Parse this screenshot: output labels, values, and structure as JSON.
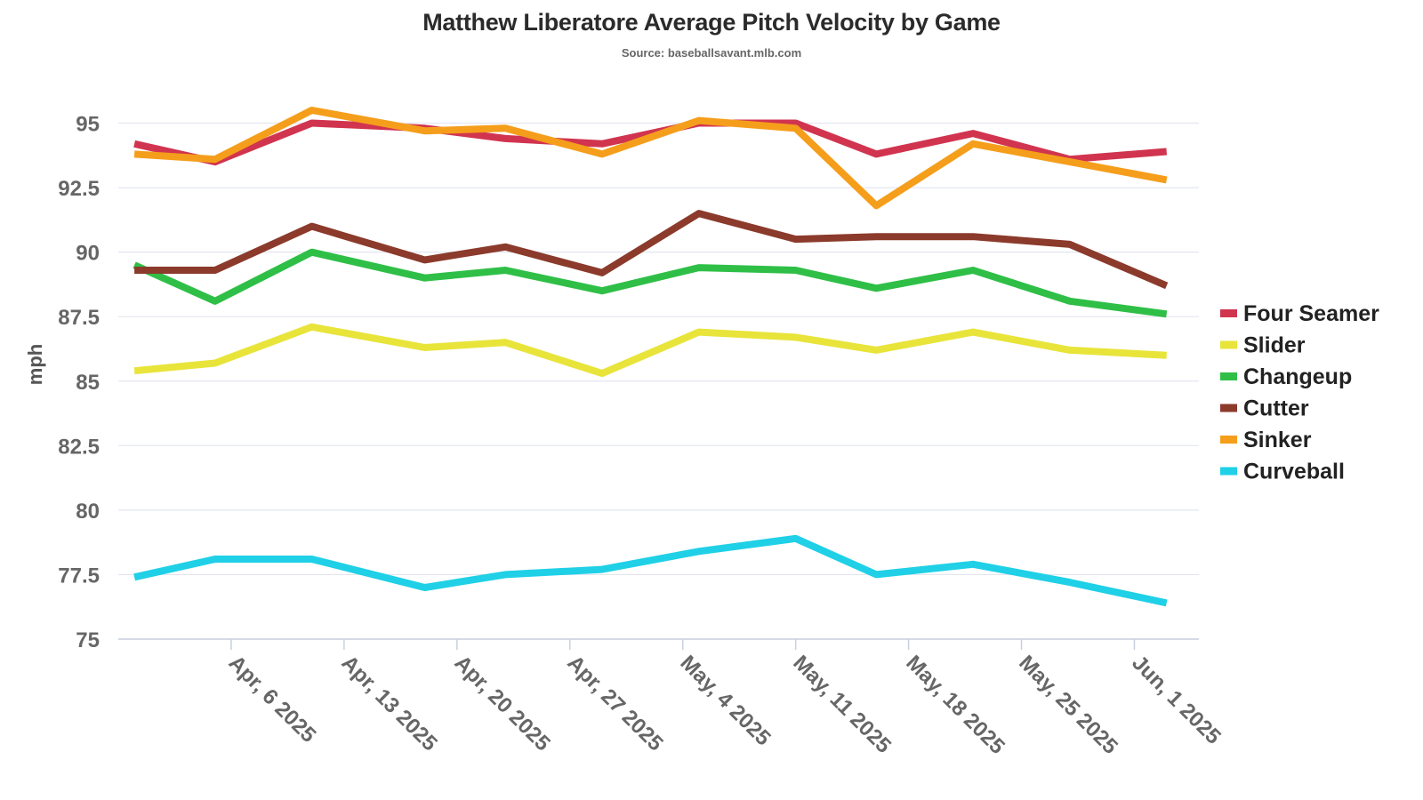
{
  "chart_data": {
    "type": "line",
    "title": "Matthew Liberatore Average Pitch Velocity by Game",
    "subtitle": "Source: baseballsavant.mlb.com",
    "xlabel": "",
    "ylabel": "mph",
    "x_dates": [
      "2025-03-31",
      "2025-04-05",
      "2025-04-11",
      "2025-04-18",
      "2025-04-23",
      "2025-04-29",
      "2025-05-05",
      "2025-05-11",
      "2025-05-16",
      "2025-05-22",
      "2025-05-28",
      "2025-06-03"
    ],
    "x_ticks": [
      "2025-04-06",
      "2025-04-13",
      "2025-04-20",
      "2025-04-27",
      "2025-05-04",
      "2025-05-11",
      "2025-05-18",
      "2025-05-25",
      "2025-06-01"
    ],
    "x_tick_labels": [
      "Apr, 6 2025",
      "Apr, 13 2025",
      "Apr, 20 2025",
      "Apr, 27 2025",
      "May, 4 2025",
      "May, 11 2025",
      "May, 18 2025",
      "May, 25 2025",
      "Jun, 1 2025"
    ],
    "xlim": [
      "2025-03-30",
      "2025-06-05"
    ],
    "ylim": [
      75,
      96.5
    ],
    "y_ticks": [
      75,
      77.5,
      80,
      82.5,
      85,
      87.5,
      90,
      92.5,
      95
    ],
    "y_tick_labels": [
      "75",
      "77.5",
      "80",
      "82.5",
      "85",
      "87.5",
      "90",
      "92.5",
      "95"
    ],
    "grid": "horizontal",
    "legend_position": "right",
    "series": [
      {
        "name": "Four Seamer",
        "color": "#d1344f",
        "values": [
          94.2,
          93.5,
          95.0,
          94.8,
          94.4,
          94.2,
          95.0,
          95.0,
          93.8,
          94.6,
          93.6,
          93.9
        ]
      },
      {
        "name": "Slider",
        "color": "#e8e43a",
        "values": [
          85.4,
          85.7,
          87.1,
          86.3,
          86.5,
          85.3,
          86.9,
          86.7,
          86.2,
          86.9,
          86.2,
          86.0
        ]
      },
      {
        "name": "Changeup",
        "color": "#2fbf47",
        "values": [
          89.5,
          88.1,
          90.0,
          89.0,
          89.3,
          88.5,
          89.4,
          89.3,
          88.6,
          89.3,
          88.1,
          87.6
        ]
      },
      {
        "name": "Cutter",
        "color": "#8b3a2b",
        "values": [
          89.3,
          89.3,
          91.0,
          89.7,
          90.2,
          89.2,
          91.5,
          90.5,
          90.6,
          90.6,
          90.3,
          88.7
        ]
      },
      {
        "name": "Sinker",
        "color": "#f59e1b",
        "values": [
          93.8,
          93.6,
          95.5,
          94.7,
          94.8,
          93.8,
          95.1,
          94.8,
          91.8,
          94.2,
          93.5,
          92.8
        ]
      },
      {
        "name": "Curveball",
        "color": "#1fd0e6",
        "values": [
          77.4,
          78.1,
          78.1,
          77.0,
          77.5,
          77.7,
          78.4,
          78.9,
          77.5,
          77.9,
          77.2,
          76.4
        ]
      }
    ]
  }
}
